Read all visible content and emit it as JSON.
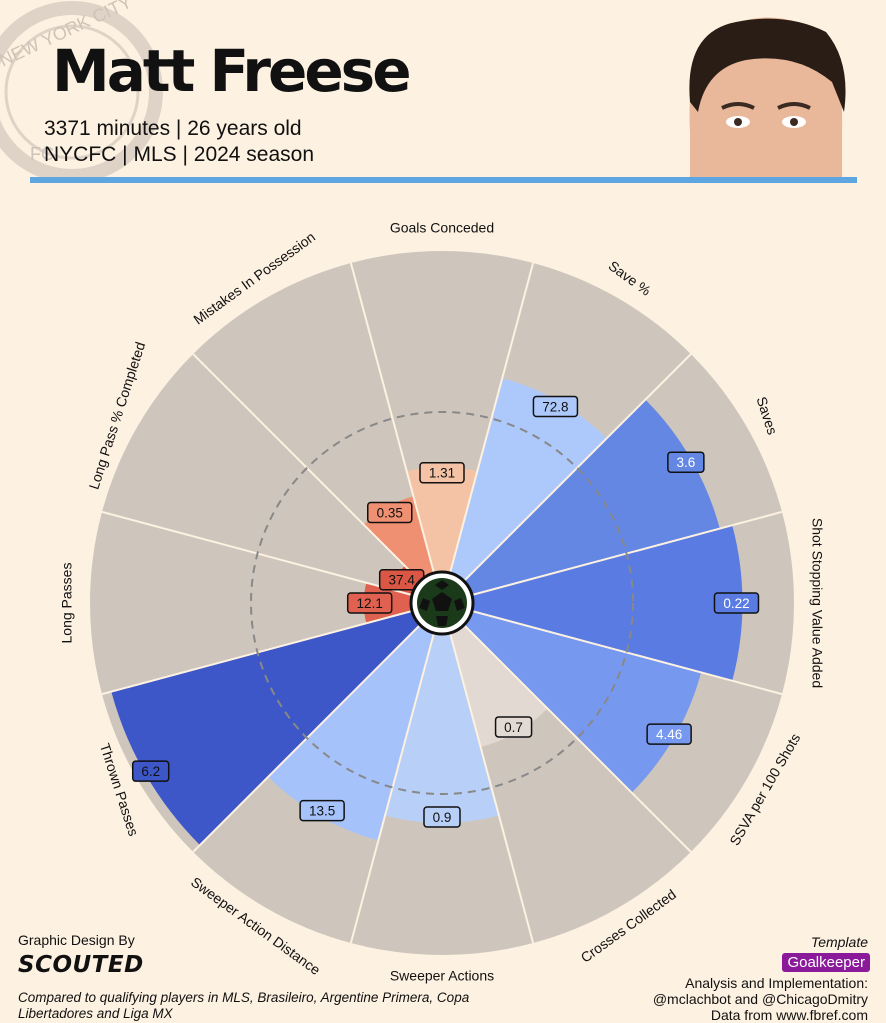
{
  "player": {
    "name": "Matt Freese",
    "info_line1": "3371 minutes | 26 years old",
    "info_line2": "NYCFC | MLS | 2024 season"
  },
  "colors": {
    "background": "#fdf1e1",
    "accent_line": "#5da6e2",
    "wedge_bg": "#cec6bc",
    "badge": "#8a1a9a"
  },
  "chart_data": {
    "type": "radial-bar (pizza)",
    "scale": [
      0,
      100
    ],
    "reference_ring": 50,
    "categories": [
      {
        "label": "Goals Conceded",
        "value": "1.31",
        "percentile": 33,
        "color": "#f4c3a5",
        "label_rot": 0
      },
      {
        "label": "Save %",
        "value": "72.8",
        "percentile": 63,
        "color": "#adc9fc",
        "label_rot": 36
      },
      {
        "label": "Saves",
        "value": "3.6",
        "percentile": 80,
        "color": "#6487e4",
        "label_rot": 72
      },
      {
        "label": "Shot Stopping Value Added",
        "value": "0.22",
        "percentile": 84,
        "color": "#5a7ce2",
        "label_rot": 90
      },
      {
        "label": "SSVA per 100 Shots",
        "value": "4.46",
        "percentile": 74,
        "color": "#7698ee",
        "label_rot": -60
      },
      {
        "label": "Crosses Collected",
        "value": "0.7",
        "percentile": 37,
        "color": "#e2d9d2",
        "label_rot": -36
      },
      {
        "label": "Sweeper Actions",
        "value": "0.9",
        "percentile": 59,
        "color": "#b8cff7",
        "label_rot": 0
      },
      {
        "label": "Sweeper Action Distance",
        "value": "13.5",
        "percentile": 67,
        "color": "#a6c2fb",
        "label_rot": 36
      },
      {
        "label": "Thrown Passes",
        "value": "6.2",
        "percentile": 97,
        "color": "#3d56c8",
        "label_rot": 72
      },
      {
        "label": "Long Passes",
        "value": "12.1",
        "percentile": 15,
        "color": "#e0614f",
        "label_rot": -90
      },
      {
        "label": "Long Pass % Completed",
        "value": "37.4",
        "percentile": 7,
        "color": "#db5745",
        "label_rot": -72
      },
      {
        "label": "Mistakes In Possession",
        "value": "0.35",
        "percentile": 25,
        "color": "#f09072",
        "label_rot": -36
      }
    ]
  },
  "footer": {
    "design_by": "Graphic Design By",
    "logo_text": "SCOUTED",
    "compared": "Compared to qualifying players in MLS, Brasileiro, Argentine Primera, Copa Libertadores and Liga MX",
    "template_label": "Template",
    "template_value": "Goalkeeper",
    "analysis": "Analysis and Implementation:",
    "authors": "@mclachbot and @ChicagoDmitry",
    "source": "Data from www.fbref.com"
  },
  "crest_text": "NEW YORK CITY FC"
}
